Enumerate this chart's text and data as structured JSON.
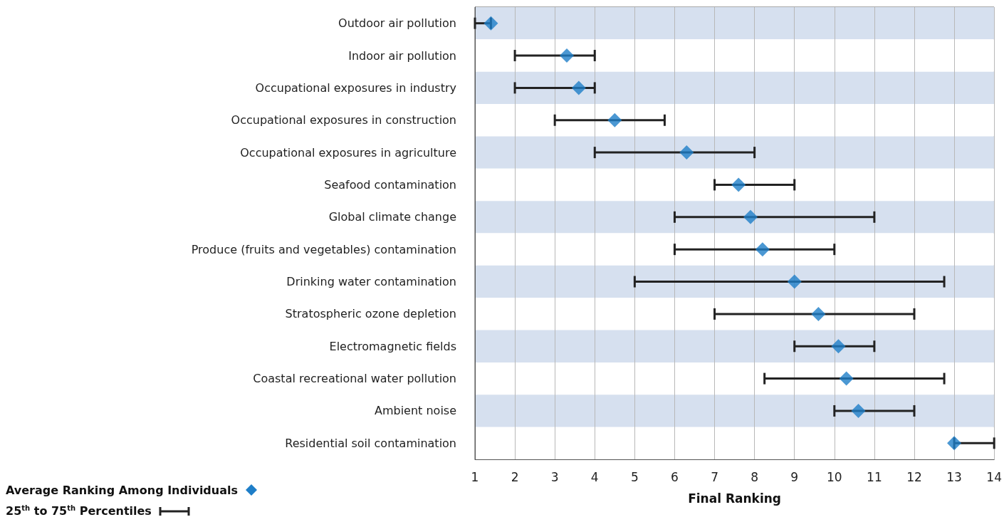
{
  "chart_data": {
    "type": "scatter",
    "orientation": "horizontal",
    "xlabel": "Final Ranking",
    "categories": [
      "Outdoor air pollution",
      "Indoor air pollution",
      "Occupational exposures in industry",
      "Occupational exposures in construction",
      "Occupational exposures in agriculture",
      "Seafood contamination",
      "Global climate change",
      "Produce (fruits and vegetables) contamination",
      "Drinking water contamination",
      "Stratospheric ozone depletion",
      "Electromagnetic fields",
      "Coastal recreational water pollution",
      "Ambient noise",
      "Residential soil contamination"
    ],
    "series": [
      {
        "name": "Average Ranking Among Individuals",
        "color": "#1e7ec8",
        "values": [
          1.4,
          3.3,
          3.6,
          4.5,
          6.3,
          7.6,
          7.9,
          8.2,
          9.0,
          9.6,
          10.1,
          10.3,
          10.6,
          13
        ],
        "errors": [
          [
            1,
            1.4
          ],
          [
            2,
            4
          ],
          [
            2,
            4
          ],
          [
            3,
            5.75
          ],
          [
            4,
            8
          ],
          [
            7,
            9
          ],
          [
            6,
            11
          ],
          [
            6,
            10
          ],
          [
            5,
            12.75
          ],
          [
            7,
            12
          ],
          [
            9,
            11
          ],
          [
            8.25,
            12.75
          ],
          [
            10,
            12
          ],
          [
            13,
            14
          ]
        ]
      }
    ],
    "annotations": [
      "25$^{th}$ to 75$^{th}$ Percentiles"
    ],
    "xlim": [
      1,
      14
    ],
    "xticks": [
      1,
      2,
      3,
      4,
      5,
      6,
      7,
      8,
      9,
      10,
      11,
      12,
      13,
      14
    ],
    "grid": "x",
    "legend": "bottom left",
    "marker": "diamond"
  }
}
